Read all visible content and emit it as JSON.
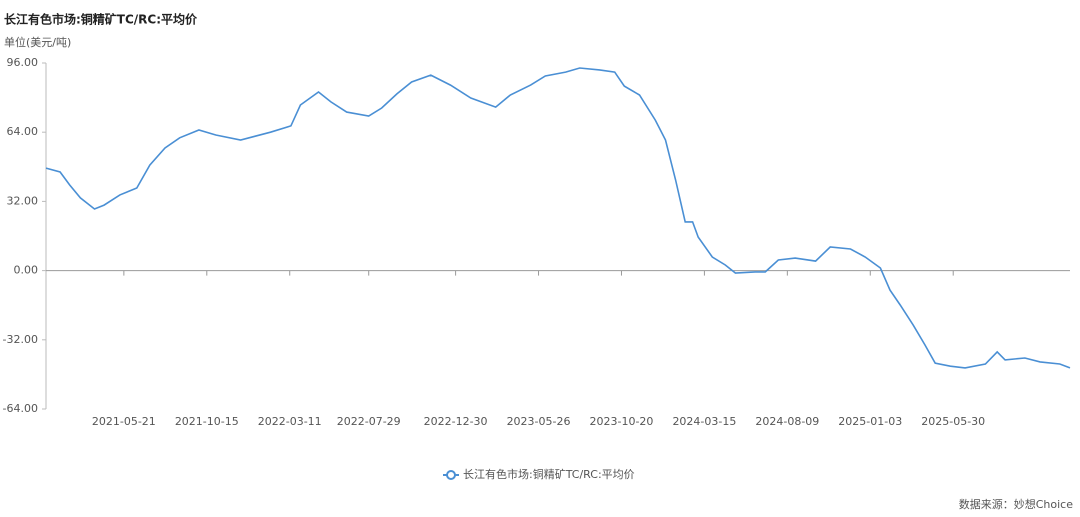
{
  "chart_data": {
    "type": "line",
    "title": "长江有色市场:铜精矿TC/RC:平均价",
    "y_label": "单位(美元/吨)",
    "source": "数据来源：妙想Choice",
    "x": [
      "2021-01-03",
      "2021-01-28",
      "2021-02-14",
      "2021-03-05",
      "2021-03-30",
      "2021-04-16",
      "2021-05-14",
      "2021-06-13",
      "2021-07-06",
      "2021-08-02",
      "2021-08-28",
      "2021-10-01",
      "2021-10-31",
      "2021-12-14",
      "2022-02-05",
      "2022-03-13",
      "2022-03-30",
      "2022-05-01",
      "2022-05-23",
      "2022-06-20",
      "2022-07-29",
      "2022-08-21",
      "2022-09-17",
      "2022-10-13",
      "2022-11-16",
      "2022-12-21",
      "2023-01-26",
      "2023-03-11",
      "2023-04-06",
      "2023-05-12",
      "2023-06-07",
      "2023-07-13",
      "2023-08-07",
      "2023-09-11",
      "2023-10-08",
      "2023-10-25",
      "2023-11-21",
      "2023-12-19",
      "2024-01-06",
      "2024-01-24",
      "2024-02-10",
      "2024-02-23",
      "2024-03-04",
      "2024-03-29",
      "2024-04-21",
      "2024-05-09",
      "2024-06-13",
      "2024-07-01",
      "2024-07-24",
      "2024-08-23",
      "2024-09-28",
      "2024-10-24",
      "2024-11-29",
      "2024-12-25",
      "2025-01-21",
      "2025-02-07",
      "2025-02-25",
      "2025-03-20",
      "2025-04-10",
      "2025-04-28",
      "2025-05-25",
      "2025-06-20",
      "2025-07-26",
      "2025-08-16",
      "2025-08-30",
      "2025-10-04",
      "2025-10-31",
      "2025-12-05",
      "2025-12-23"
    ],
    "series": [
      {
        "name": "长江有色市场:铜精矿TC/RC:平均价",
        "color": "#4a8fd4",
        "values": [
          47.4,
          45.6,
          39.6,
          33.6,
          28.5,
          30.3,
          35,
          38.2,
          48.8,
          56.7,
          61.4,
          65,
          62.7,
          60.4,
          64,
          66.9,
          76.6,
          82.6,
          78,
          73.3,
          71.5,
          75.2,
          81.7,
          87.2,
          90.4,
          85.8,
          79.8,
          75.6,
          81.2,
          85.8,
          90,
          91.8,
          93.7,
          92.8,
          91.8,
          85.3,
          81.2,
          69.6,
          60.4,
          41.9,
          22.5,
          22.5,
          15.5,
          6.3,
          2.6,
          -1.1,
          -0.6,
          -0.6,
          4.9,
          5.8,
          4.4,
          10.9,
          10,
          6.3,
          1.2,
          -9,
          -15.9,
          -25.2,
          -34.4,
          -42.8,
          -44.2,
          -45,
          -43.2,
          -37.6,
          -41.3,
          -40.4,
          -42.2,
          -43.2,
          -45
        ]
      }
    ],
    "xlim": [
      "2021-01-03",
      "2025-12-23"
    ],
    "xticks": [
      "2021-05-21",
      "2021-10-15",
      "2022-03-11",
      "2022-07-29",
      "2022-12-30",
      "2023-05-26",
      "2023-10-20",
      "2024-03-15",
      "2024-08-09",
      "2025-01-03",
      "2025-05-30"
    ],
    "ylim": [
      -64,
      96
    ],
    "yticks": [
      {
        "value": 96,
        "label": "96.00"
      },
      {
        "value": 64,
        "label": "64.00"
      },
      {
        "value": 32,
        "label": "32.00"
      },
      {
        "value": 0,
        "label": "0.00"
      },
      {
        "value": -32,
        "label": "-32.00"
      },
      {
        "value": -64,
        "label": "-64.00"
      }
    ],
    "grid": false
  }
}
